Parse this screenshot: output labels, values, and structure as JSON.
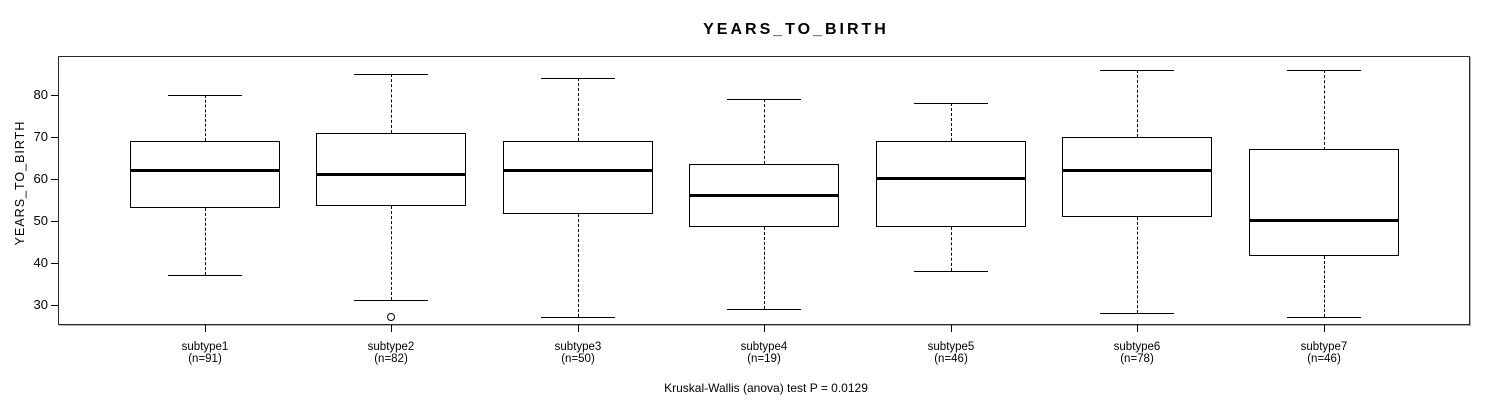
{
  "title": "YEARS_TO_BIRTH",
  "y_axis": {
    "label": "YEARS_TO_BIRTH",
    "ticks": [
      30,
      40,
      50,
      60,
      70,
      80
    ]
  },
  "footer": "Kruskal-Wallis (anova) test P = 0.0129",
  "chart_data": {
    "type": "boxplot",
    "title": "YEARS_TO_BIRTH",
    "xlabel": "",
    "ylabel": "YEARS_TO_BIRTH",
    "ylim": [
      25,
      89
    ],
    "yticks": [
      30,
      40,
      50,
      60,
      70,
      80
    ],
    "grid": false,
    "legend": null,
    "categories": [
      "subtype1",
      "subtype2",
      "subtype3",
      "subtype4",
      "subtype5",
      "subtype6",
      "subtype7"
    ],
    "category_sublabels": [
      "(n=91)",
      "(n=82)",
      "(n=50)",
      "(n=19)",
      "(n=46)",
      "(n=78)",
      "(n=46)"
    ],
    "sample_sizes": [
      91,
      82,
      50,
      19,
      46,
      78,
      46
    ],
    "series": [
      {
        "name": "subtype1",
        "n": 91,
        "whisker_low": 37,
        "q1": 53,
        "median": 62,
        "q3": 69,
        "whisker_high": 80,
        "outliers": []
      },
      {
        "name": "subtype2",
        "n": 82,
        "whisker_low": 31,
        "q1": 53.5,
        "median": 61,
        "q3": 71,
        "whisker_high": 85,
        "outliers": [
          27
        ]
      },
      {
        "name": "subtype3",
        "n": 50,
        "whisker_low": 27,
        "q1": 51.5,
        "median": 62,
        "q3": 69,
        "whisker_high": 84,
        "outliers": []
      },
      {
        "name": "subtype4",
        "n": 19,
        "whisker_low": 29,
        "q1": 48.5,
        "median": 56,
        "q3": 63.5,
        "whisker_high": 79,
        "outliers": []
      },
      {
        "name": "subtype5",
        "n": 46,
        "whisker_low": 38,
        "q1": 48.5,
        "median": 60,
        "q3": 69,
        "whisker_high": 78,
        "outliers": []
      },
      {
        "name": "subtype6",
        "n": 78,
        "whisker_low": 28,
        "q1": 51,
        "median": 62,
        "q3": 70,
        "whisker_high": 86,
        "outliers": []
      },
      {
        "name": "subtype7",
        "n": 46,
        "whisker_low": 27,
        "q1": 41.5,
        "median": 50,
        "q3": 67,
        "whisker_high": 86,
        "outliers": []
      }
    ],
    "annotation": "Kruskal-Wallis (anova) test P = 0.0129"
  },
  "colors": {
    "line": "#000000",
    "box_fill": "#ffffff",
    "background": "#ffffff",
    "plot_border": "#2b2b2b"
  }
}
